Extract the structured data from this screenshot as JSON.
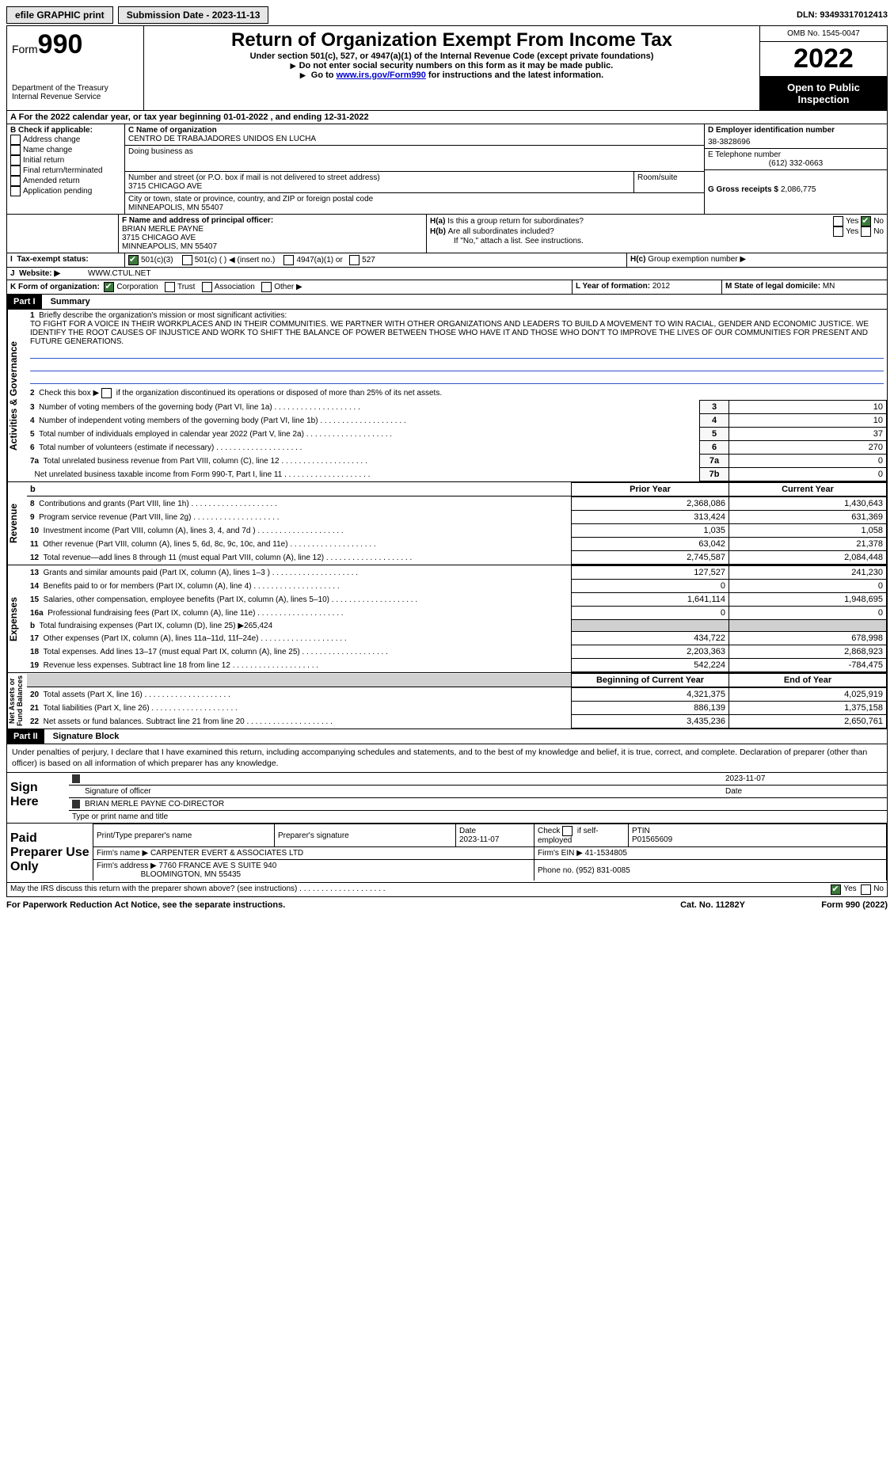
{
  "topbar": {
    "efile": "efile GRAPHIC print",
    "submission": "Submission Date - 2023-11-13",
    "dln": "DLN: 93493317012413"
  },
  "header": {
    "form_label": "Form",
    "form_number": "990",
    "dept": "Department of the Treasury",
    "irs": "Internal Revenue Service",
    "title": "Return of Organization Exempt From Income Tax",
    "subtitle": "Under section 501(c), 527, or 4947(a)(1) of the Internal Revenue Code (except private foundations)",
    "note1": "Do not enter social security numbers on this form as it may be made public.",
    "note2_pre": "Go to ",
    "note2_link": "www.irs.gov/Form990",
    "note2_post": " for instructions and the latest information.",
    "omb": "OMB No. 1545-0047",
    "year": "2022",
    "open": "Open to Public Inspection"
  },
  "line_a": "For the 2022 calendar year, or tax year beginning 01-01-2022   , and ending 12-31-2022",
  "sectionB": {
    "title": "B Check if applicable:",
    "opts": [
      "Address change",
      "Name change",
      "Initial return",
      "Final return/terminated",
      "Amended return",
      "Application pending"
    ]
  },
  "sectionC": {
    "name_label": "C Name of organization",
    "name": "CENTRO DE TRABAJADORES UNIDOS EN LUCHA",
    "dba_label": "Doing business as",
    "addr_label": "Number and street (or P.O. box if mail is not delivered to street address)",
    "room_label": "Room/suite",
    "addr": "3715 CHICAGO AVE",
    "city_label": "City or town, state or province, country, and ZIP or foreign postal code",
    "city": "MINNEAPOLIS, MN  55407"
  },
  "sectionD": {
    "label": "D Employer identification number",
    "val": "38-3828696"
  },
  "sectionE": {
    "label": "E Telephone number",
    "val": "(612) 332-0663"
  },
  "sectionG": {
    "label": "G Gross receipts $",
    "val": "2,086,775"
  },
  "sectionF": {
    "label": "F  Name and address of principal officer:",
    "name": "BRIAN MERLE PAYNE",
    "addr1": "3715 CHICAGO AVE",
    "addr2": "MINNEAPOLIS, MN  55407"
  },
  "sectionH": {
    "a": "Is this a group return for subordinates?",
    "b": "Are all subordinates included?",
    "note": "If \"No,\" attach a list. See instructions.",
    "c": "Group exemption number ▶",
    "yes": "Yes",
    "no": "No"
  },
  "sectionI": {
    "label": "Tax-exempt status:",
    "o1": "501(c)(3)",
    "o2": "501(c) (   ) ◀ (insert no.)",
    "o3": "4947(a)(1) or",
    "o4": "527"
  },
  "sectionJ": {
    "label": "Website: ▶",
    "val": "WWW.CTUL.NET"
  },
  "sectionK": {
    "label": "K Form of organization:",
    "o1": "Corporation",
    "o2": "Trust",
    "o3": "Association",
    "o4": "Other ▶"
  },
  "sectionL": {
    "label": "L Year of formation:",
    "val": "2012"
  },
  "sectionM": {
    "label": "M State of legal domicile:",
    "val": "MN"
  },
  "part1": {
    "header": "Part I",
    "title": "Summary",
    "q1": "Briefly describe the organization's mission or most significant activities:",
    "mission": "TO FIGHT FOR A VOICE IN THEIR WORKPLACES AND IN THEIR COMMUNITIES. WE PARTNER WITH OTHER ORGANIZATIONS AND LEADERS TO BUILD A MOVEMENT TO WIN RACIAL, GENDER AND ECONOMIC JUSTICE. WE IDENTIFY THE ROOT CAUSES OF INJUSTICE AND WORK TO SHIFT THE BALANCE OF POWER BETWEEN THOSE WHO HAVE IT AND THOSE WHO DON'T TO IMPROVE THE LIVES OF OUR COMMUNITIES FOR PRESENT AND FUTURE GENERATIONS.",
    "q2": "Check this box ▶      if the organization discontinued its operations or disposed of more than 25% of its net assets.",
    "rows_a": [
      {
        "n": "3",
        "t": "Number of voting members of the governing body (Part VI, line 1a)",
        "l": "3",
        "v": "10"
      },
      {
        "n": "4",
        "t": "Number of independent voting members of the governing body (Part VI, line 1b)",
        "l": "4",
        "v": "10"
      },
      {
        "n": "5",
        "t": "Total number of individuals employed in calendar year 2022 (Part V, line 2a)",
        "l": "5",
        "v": "37"
      },
      {
        "n": "6",
        "t": "Total number of volunteers (estimate if necessary)",
        "l": "6",
        "v": "270"
      },
      {
        "n": "7a",
        "t": "Total unrelated business revenue from Part VIII, column (C), line 12",
        "l": "7a",
        "v": "0"
      },
      {
        "n": "",
        "t": "Net unrelated business taxable income from Form 990-T, Part I, line 11",
        "l": "7b",
        "v": "0"
      }
    ],
    "hdr_prior": "Prior Year",
    "hdr_curr": "Current Year",
    "rows_rev": [
      {
        "n": "8",
        "t": "Contributions and grants (Part VIII, line 1h)",
        "p": "2,368,086",
        "c": "1,430,643"
      },
      {
        "n": "9",
        "t": "Program service revenue (Part VIII, line 2g)",
        "p": "313,424",
        "c": "631,369"
      },
      {
        "n": "10",
        "t": "Investment income (Part VIII, column (A), lines 3, 4, and 7d )",
        "p": "1,035",
        "c": "1,058"
      },
      {
        "n": "11",
        "t": "Other revenue (Part VIII, column (A), lines 5, 6d, 8c, 9c, 10c, and 11e)",
        "p": "63,042",
        "c": "21,378"
      },
      {
        "n": "12",
        "t": "Total revenue—add lines 8 through 11 (must equal Part VIII, column (A), line 12)",
        "p": "2,745,587",
        "c": "2,084,448"
      }
    ],
    "rows_exp": [
      {
        "n": "13",
        "t": "Grants and similar amounts paid (Part IX, column (A), lines 1–3 )",
        "p": "127,527",
        "c": "241,230"
      },
      {
        "n": "14",
        "t": "Benefits paid to or for members (Part IX, column (A), line 4)",
        "p": "0",
        "c": "0"
      },
      {
        "n": "15",
        "t": "Salaries, other compensation, employee benefits (Part IX, column (A), lines 5–10)",
        "p": "1,641,114",
        "c": "1,948,695"
      },
      {
        "n": "16a",
        "t": "Professional fundraising fees (Part IX, column (A), line 11e)",
        "p": "0",
        "c": "0"
      },
      {
        "n": "b",
        "t": "Total fundraising expenses (Part IX, column (D), line 25) ▶265,424",
        "p": "",
        "c": "",
        "gray": true
      },
      {
        "n": "17",
        "t": "Other expenses (Part IX, column (A), lines 11a–11d, 11f–24e)",
        "p": "434,722",
        "c": "678,998"
      },
      {
        "n": "18",
        "t": "Total expenses. Add lines 13–17 (must equal Part IX, column (A), line 25)",
        "p": "2,203,363",
        "c": "2,868,923"
      },
      {
        "n": "19",
        "t": "Revenue less expenses. Subtract line 18 from line 12",
        "p": "542,224",
        "c": "-784,475"
      }
    ],
    "hdr_beg": "Beginning of Current Year",
    "hdr_end": "End of Year",
    "rows_net": [
      {
        "n": "20",
        "t": "Total assets (Part X, line 16)",
        "p": "4,321,375",
        "c": "4,025,919"
      },
      {
        "n": "21",
        "t": "Total liabilities (Part X, line 26)",
        "p": "886,139",
        "c": "1,375,158"
      },
      {
        "n": "22",
        "t": "Net assets or fund balances. Subtract line 21 from line 20",
        "p": "3,435,236",
        "c": "2,650,761"
      }
    ]
  },
  "part2": {
    "header": "Part II",
    "title": "Signature Block",
    "declaration": "Under penalties of perjury, I declare that I have examined this return, including accompanying schedules and statements, and to the best of my knowledge and belief, it is true, correct, and complete. Declaration of preparer (other than officer) is based on all information of which preparer has any knowledge.",
    "sign": "Sign Here",
    "sig_officer": "Signature of officer",
    "sig_date": "Date",
    "sig_date_val": "2023-11-07",
    "officer_name": "BRIAN MERLE PAYNE  CO-DIRECTOR",
    "name_title": "Type or print name and title",
    "paid": "Paid Preparer Use Only",
    "prep_name_lbl": "Print/Type preparer's name",
    "prep_sig_lbl": "Preparer's signature",
    "prep_date_lbl": "Date",
    "prep_date": "2023-11-07",
    "check_self": "Check        if self-employed",
    "ptin_lbl": "PTIN",
    "ptin": "P01565609",
    "firm_name_lbl": "Firm's name   ▶",
    "firm_name": "CARPENTER EVERT & ASSOCIATES LTD",
    "firm_ein_lbl": "Firm's EIN ▶",
    "firm_ein": "41-1534805",
    "firm_addr_lbl": "Firm's address ▶",
    "firm_addr1": "7760 FRANCE AVE S SUITE 940",
    "firm_addr2": "BLOOMINGTON, MN  55435",
    "phone_lbl": "Phone no.",
    "phone": "(952) 831-0085",
    "discuss": "May the IRS discuss this return with the preparer shown above? (see instructions)",
    "yes": "Yes",
    "no": "No"
  },
  "footer": {
    "left": "For Paperwork Reduction Act Notice, see the separate instructions.",
    "mid": "Cat. No. 11282Y",
    "right_form": "Form ",
    "right_num": "990",
    "right_yr": " (2022)"
  }
}
